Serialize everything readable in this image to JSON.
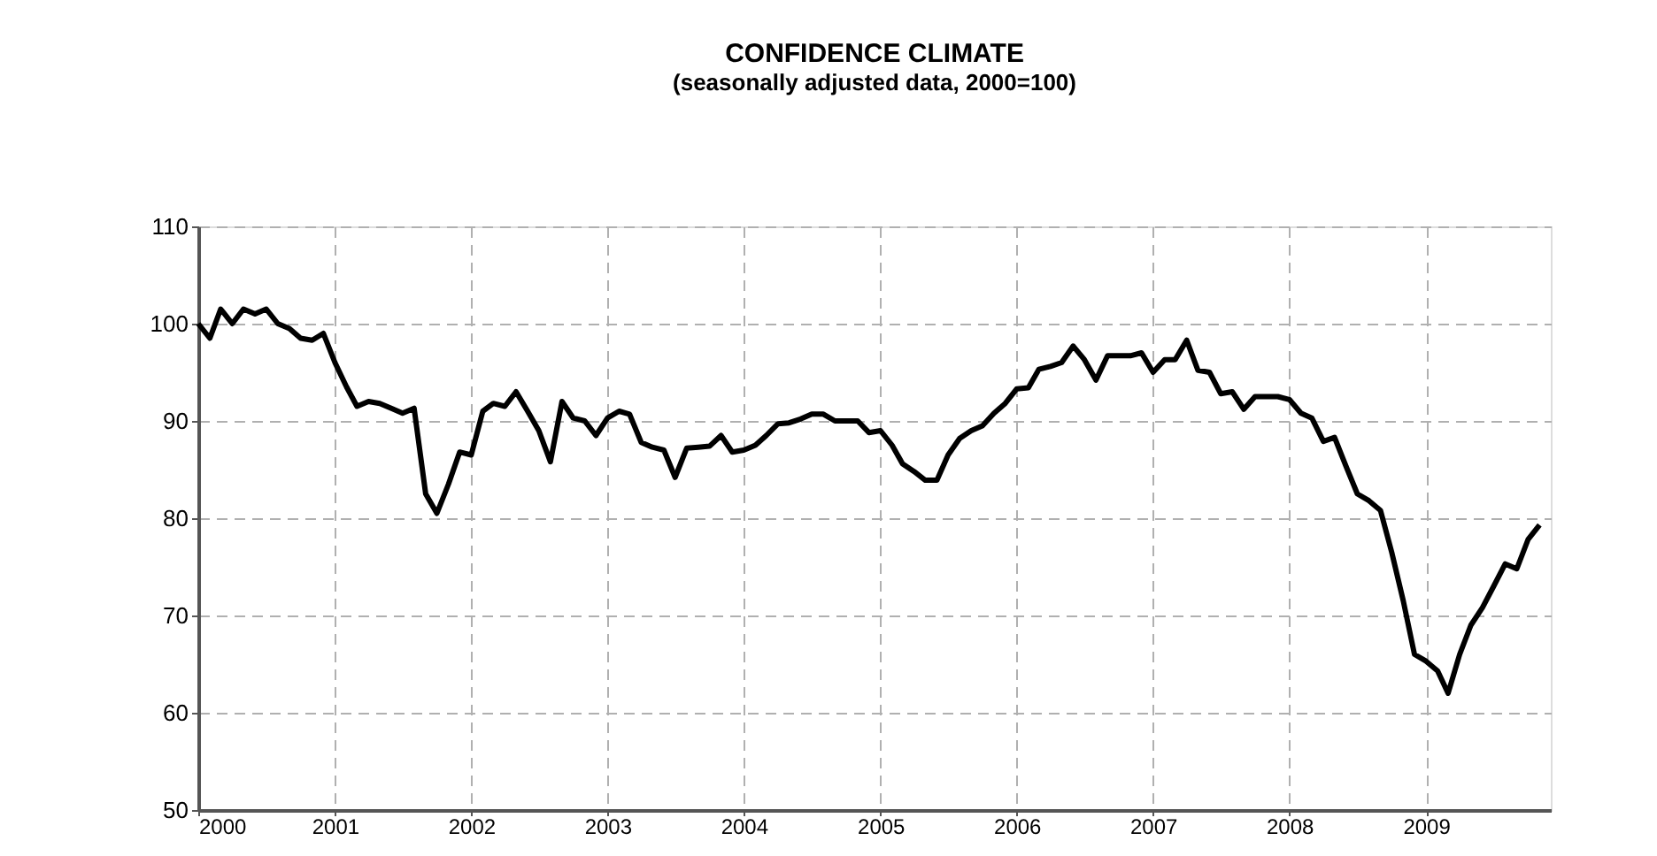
{
  "chart_data": {
    "type": "line",
    "title": "CONFIDENCE CLIMATE",
    "subtitle": "(seasonally adjusted data, 2000=100)",
    "x": [
      "2000-01",
      "2000-02",
      "2000-03",
      "2000-04",
      "2000-05",
      "2000-06",
      "2000-07",
      "2000-08",
      "2000-09",
      "2000-10",
      "2000-11",
      "2000-12",
      "2001-01",
      "2001-02",
      "2001-03",
      "2001-04",
      "2001-05",
      "2001-06",
      "2001-07",
      "2001-08",
      "2001-09",
      "2001-10",
      "2001-11",
      "2001-12",
      "2002-01",
      "2002-02",
      "2002-03",
      "2002-04",
      "2002-05",
      "2002-06",
      "2002-07",
      "2002-08",
      "2002-09",
      "2002-10",
      "2002-11",
      "2002-12",
      "2003-01",
      "2003-02",
      "2003-03",
      "2003-04",
      "2003-05",
      "2003-06",
      "2003-07",
      "2003-08",
      "2003-09",
      "2003-10",
      "2003-11",
      "2003-12",
      "2004-01",
      "2004-02",
      "2004-03",
      "2004-04",
      "2004-05",
      "2004-06",
      "2004-07",
      "2004-08",
      "2004-09",
      "2004-10",
      "2004-11",
      "2004-12",
      "2005-01",
      "2005-02",
      "2005-03",
      "2005-04",
      "2005-05",
      "2005-06",
      "2005-07",
      "2005-08",
      "2005-09",
      "2005-10",
      "2005-11",
      "2005-12",
      "2006-01",
      "2006-02",
      "2006-03",
      "2006-04",
      "2006-05",
      "2006-06",
      "2006-07",
      "2006-08",
      "2006-09",
      "2006-10",
      "2006-11",
      "2006-12",
      "2007-01",
      "2007-02",
      "2007-03",
      "2007-04",
      "2007-05",
      "2007-06",
      "2007-07",
      "2007-08",
      "2007-09",
      "2007-10",
      "2007-11",
      "2007-12",
      "2008-01",
      "2008-02",
      "2008-03",
      "2008-04",
      "2008-05",
      "2008-06",
      "2008-07",
      "2008-08",
      "2008-09",
      "2008-10",
      "2008-11",
      "2008-12",
      "2009-01",
      "2009-02",
      "2009-03",
      "2009-04",
      "2009-05",
      "2009-06",
      "2009-07",
      "2009-08",
      "2009-09",
      "2009-10",
      "2009-11"
    ],
    "series": [
      {
        "color": "#000000",
        "values": [
          100,
          98.5,
          101.5,
          100,
          101.5,
          101,
          101.5,
          100,
          99.5,
          98.5,
          98.3,
          99,
          96,
          93.5,
          91.5,
          92,
          91.8,
          91.3,
          90.8,
          91.3,
          82.5,
          80.5,
          83.5,
          86.8,
          86.5,
          91,
          91.8,
          91.5,
          93,
          91,
          89,
          85.8,
          92,
          90.3,
          90,
          88.5,
          90.3,
          91,
          90.7,
          87.8,
          87.3,
          87,
          84.2,
          87.2,
          87.3,
          87.4,
          88.5,
          86.8,
          87,
          87.5,
          88.5,
          89.7,
          89.8,
          90.2,
          90.7,
          90.7,
          90,
          90,
          90,
          88.8,
          89,
          87.5,
          85.6,
          84.8,
          83.9,
          83.9,
          86.5,
          88.2,
          89,
          89.5,
          90.8,
          91.8,
          93.3,
          93.4,
          95.3,
          95.6,
          96,
          97.7,
          96.3,
          94.2,
          96.7,
          96.7,
          96.7,
          97,
          95,
          96.3,
          96.3,
          98.3,
          95.2,
          95,
          92.8,
          93,
          91.2,
          92.5,
          92.5,
          92.5,
          92.2,
          90.8,
          90.3,
          87.9,
          88.3,
          85.3,
          82.5,
          81.8,
          80.8,
          76.5,
          71.5,
          66,
          65.3,
          64.3,
          62,
          66,
          69,
          70.8,
          73,
          75.3,
          74.8,
          77.8,
          79.3
        ]
      }
    ],
    "xlim": [
      "2000-01",
      "2009-12"
    ],
    "xticks": [
      "2000",
      "2001",
      "2002",
      "2003",
      "2004",
      "2005",
      "2006",
      "2007",
      "2008",
      "2009"
    ],
    "ylim": [
      50,
      110
    ],
    "yticks": [
      50,
      60,
      70,
      80,
      90,
      100,
      110
    ],
    "grid": true,
    "line_style": "solid",
    "marker": "none"
  }
}
